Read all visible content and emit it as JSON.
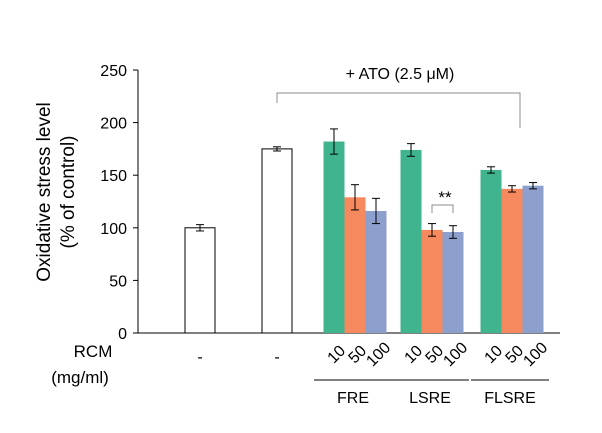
{
  "chart_data": {
    "type": "bar",
    "ylabel_line1": "Oxidative stress level",
    "ylabel_line2": "(% of control)",
    "ylim": [
      0,
      250
    ],
    "yticks": [
      "0",
      "50",
      "100",
      "150",
      "200",
      "250"
    ],
    "bracket_label": "+ ATO (2.5 μM)",
    "significance_label": "**",
    "row_label_1": "RCM",
    "row_label_2": "(mg/ml)",
    "bars": [
      {
        "x_label": "-",
        "value": 100,
        "error": 3,
        "color": "#ffffff"
      },
      {
        "x_label": "-",
        "value": 175,
        "error": 2,
        "color": "#ffffff"
      },
      {
        "x_label": "10",
        "value": 182,
        "error": 12,
        "color": "#3fb48f",
        "group": "FRE"
      },
      {
        "x_label": "50",
        "value": 129,
        "error": 12,
        "color": "#f7895e",
        "group": "FRE"
      },
      {
        "x_label": "100",
        "value": 116,
        "error": 12,
        "color": "#8d9fcd",
        "group": "FRE"
      },
      {
        "x_label": "10",
        "value": 174,
        "error": 6,
        "color": "#3fb48f",
        "group": "LSRE"
      },
      {
        "x_label": "50",
        "value": 98,
        "error": 6,
        "color": "#f7895e",
        "group": "LSRE"
      },
      {
        "x_label": "100",
        "value": 96,
        "error": 6,
        "color": "#8d9fcd",
        "group": "LSRE"
      },
      {
        "x_label": "10",
        "value": 155,
        "error": 3,
        "color": "#3fb48f",
        "group": "FLSRE"
      },
      {
        "x_label": "50",
        "value": 137,
        "error": 3,
        "color": "#f7895e",
        "group": "FLSRE"
      },
      {
        "x_label": "100",
        "value": 140,
        "error": 3,
        "color": "#8d9fcd",
        "group": "FLSRE"
      }
    ],
    "groups": [
      "FRE",
      "LSRE",
      "FLSRE"
    ],
    "significance": {
      "between": [
        6,
        7
      ]
    },
    "bracket_span": [
      1,
      10
    ]
  }
}
